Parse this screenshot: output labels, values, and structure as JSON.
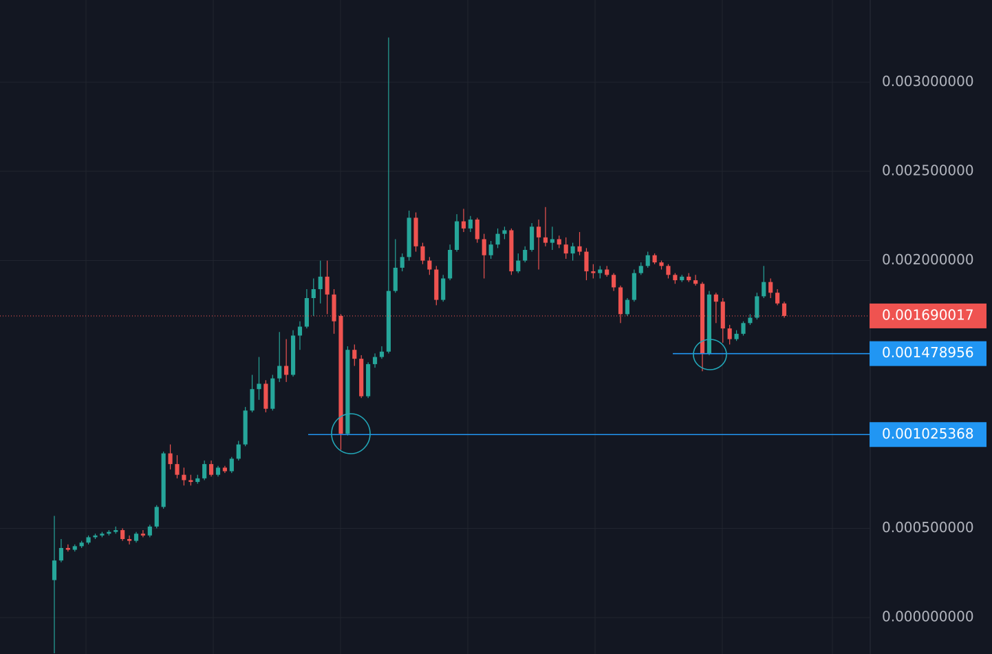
{
  "chart_data": {
    "type": "candlestick",
    "up_color": "#26a69a",
    "down_color": "#ef5350",
    "grid": true,
    "ylim": [
      -0.000204,
      0.00346
    ],
    "yticks": [
      {
        "value": 0.003,
        "label": "0.003000000"
      },
      {
        "value": 0.0025,
        "label": "0.002500000"
      },
      {
        "value": 0.002,
        "label": "0.002000000"
      },
      {
        "value": 0.0005,
        "label": "0.000500000"
      },
      {
        "value": 0,
        "label": "0.000000000"
      }
    ],
    "last_price": {
      "value": 0.001690017,
      "color": "#ef5350"
    },
    "horizontal_lines": [
      {
        "value": 0.001478956,
        "color": "#2196f3"
      },
      {
        "value": 0.001025368,
        "color": "#2196f3"
      }
    ],
    "candles": [
      [
        0.00021,
        0.00057,
        -0.0002,
        0.00032
      ],
      [
        0.00032,
        0.00044,
        0.00031,
        0.00039
      ],
      [
        0.00039,
        0.00041,
        0.00037,
        0.00038
      ],
      [
        0.00038,
        0.00041,
        0.00037,
        0.0004
      ],
      [
        0.0004,
        0.00043,
        0.00039,
        0.00042
      ],
      [
        0.00042,
        0.00046,
        0.00041,
        0.00045
      ],
      [
        0.00045,
        0.00047,
        0.00044,
        0.00046
      ],
      [
        0.00046,
        0.00048,
        0.00045,
        0.00047
      ],
      [
        0.00047,
        0.00049,
        0.00046,
        0.00048
      ],
      [
        0.00048,
        0.00051,
        0.00047,
        0.00049
      ],
      [
        0.00049,
        0.0005,
        0.00043,
        0.00044
      ],
      [
        0.00044,
        0.00046,
        0.00041,
        0.00043
      ],
      [
        0.00043,
        0.00048,
        0.00042,
        0.00047
      ],
      [
        0.00047,
        0.00049,
        0.00045,
        0.00046
      ],
      [
        0.00046,
        0.00052,
        0.00045,
        0.00051
      ],
      [
        0.00051,
        0.00063,
        0.0005,
        0.00062
      ],
      [
        0.00062,
        0.00093,
        0.00061,
        0.00092
      ],
      [
        0.00092,
        0.00097,
        0.00083,
        0.00086
      ],
      [
        0.00086,
        0.00091,
        0.00078,
        0.0008
      ],
      [
        0.0008,
        0.00084,
        0.00074,
        0.00077
      ],
      [
        0.00077,
        0.0008,
        0.00074,
        0.00076
      ],
      [
        0.00076,
        0.0008,
        0.00075,
        0.00078
      ],
      [
        0.00078,
        0.00088,
        0.00077,
        0.00086
      ],
      [
        0.00086,
        0.00088,
        0.00079,
        0.0008
      ],
      [
        0.0008,
        0.00085,
        0.00079,
        0.00084
      ],
      [
        0.00084,
        0.00085,
        0.00081,
        0.00082
      ],
      [
        0.00082,
        0.0009,
        0.00081,
        0.00089
      ],
      [
        0.00089,
        0.00099,
        0.00088,
        0.00097
      ],
      [
        0.00097,
        0.00118,
        0.00096,
        0.00116
      ],
      [
        0.00116,
        0.00136,
        0.00115,
        0.00128
      ],
      [
        0.00128,
        0.00146,
        0.00122,
        0.00131
      ],
      [
        0.00131,
        0.00133,
        0.00115,
        0.00117
      ],
      [
        0.00117,
        0.00136,
        0.00116,
        0.00134
      ],
      [
        0.00134,
        0.0016,
        0.00132,
        0.00141
      ],
      [
        0.00141,
        0.00156,
        0.00132,
        0.00136
      ],
      [
        0.00136,
        0.00161,
        0.00135,
        0.00158
      ],
      [
        0.00158,
        0.00166,
        0.0015,
        0.00163
      ],
      [
        0.00163,
        0.00184,
        0.00162,
        0.00179
      ],
      [
        0.00179,
        0.0019,
        0.00169,
        0.00184
      ],
      [
        0.00184,
        0.002,
        0.00176,
        0.00191
      ],
      [
        0.00191,
        0.002,
        0.0017,
        0.00181
      ],
      [
        0.00181,
        0.00184,
        0.00159,
        0.00166
      ],
      [
        0.00169,
        0.0017,
        0.00094,
        0.00103
      ],
      [
        0.00103,
        0.00152,
        0.00102,
        0.0015
      ],
      [
        0.0015,
        0.00153,
        0.00141,
        0.00145
      ],
      [
        0.00145,
        0.00147,
        0.00123,
        0.00124
      ],
      [
        0.00124,
        0.00143,
        0.00123,
        0.00142
      ],
      [
        0.00142,
        0.00148,
        0.0014,
        0.00146
      ],
      [
        0.00146,
        0.00152,
        0.00145,
        0.00149
      ],
      [
        0.00149,
        0.00325,
        0.00148,
        0.00183
      ],
      [
        0.00183,
        0.00212,
        0.00182,
        0.00196
      ],
      [
        0.00196,
        0.00204,
        0.00194,
        0.00202
      ],
      [
        0.00202,
        0.00228,
        0.002,
        0.00224
      ],
      [
        0.00224,
        0.00227,
        0.00205,
        0.00208
      ],
      [
        0.00208,
        0.0021,
        0.00198,
        0.002
      ],
      [
        0.002,
        0.00202,
        0.00192,
        0.00195
      ],
      [
        0.00195,
        0.00197,
        0.00175,
        0.00178
      ],
      [
        0.00178,
        0.00192,
        0.00177,
        0.0019
      ],
      [
        0.0019,
        0.00209,
        0.00189,
        0.00206
      ],
      [
        0.00206,
        0.00226,
        0.00205,
        0.00222
      ],
      [
        0.00222,
        0.00229,
        0.00216,
        0.00218
      ],
      [
        0.00218,
        0.00225,
        0.00216,
        0.00223
      ],
      [
        0.00223,
        0.00224,
        0.0021,
        0.00212
      ],
      [
        0.00212,
        0.00215,
        0.0019,
        0.00203
      ],
      [
        0.00203,
        0.00211,
        0.00201,
        0.00209
      ],
      [
        0.00209,
        0.00218,
        0.00207,
        0.00215
      ],
      [
        0.00215,
        0.00219,
        0.00212,
        0.00217
      ],
      [
        0.00217,
        0.00218,
        0.00192,
        0.00194
      ],
      [
        0.00194,
        0.00204,
        0.00193,
        0.002
      ],
      [
        0.002,
        0.00208,
        0.00199,
        0.00206
      ],
      [
        0.00206,
        0.00221,
        0.00205,
        0.00219
      ],
      [
        0.00219,
        0.00223,
        0.00195,
        0.00213
      ],
      [
        0.00213,
        0.0023,
        0.00208,
        0.0021
      ],
      [
        0.0021,
        0.00219,
        0.00206,
        0.00212
      ],
      [
        0.00212,
        0.00214,
        0.00207,
        0.00209
      ],
      [
        0.00209,
        0.00213,
        0.00201,
        0.00204
      ],
      [
        0.00204,
        0.0021,
        0.002,
        0.00208
      ],
      [
        0.00208,
        0.00216,
        0.00203,
        0.00205
      ],
      [
        0.00205,
        0.00207,
        0.00189,
        0.00194
      ],
      [
        0.00194,
        0.00198,
        0.0019,
        0.00193
      ],
      [
        0.00193,
        0.00197,
        0.0019,
        0.00195
      ],
      [
        0.00195,
        0.00197,
        0.00191,
        0.00192
      ],
      [
        0.00192,
        0.00193,
        0.00183,
        0.00185
      ],
      [
        0.00185,
        0.00186,
        0.00165,
        0.0017
      ],
      [
        0.0017,
        0.00179,
        0.00169,
        0.00178
      ],
      [
        0.00178,
        0.00195,
        0.00177,
        0.00193
      ],
      [
        0.00193,
        0.00199,
        0.00192,
        0.00197
      ],
      [
        0.00197,
        0.00205,
        0.00196,
        0.00203
      ],
      [
        0.00203,
        0.00204,
        0.00198,
        0.00199
      ],
      [
        0.00199,
        0.002,
        0.00195,
        0.00197
      ],
      [
        0.00197,
        0.00198,
        0.0019,
        0.00192
      ],
      [
        0.00192,
        0.00193,
        0.00187,
        0.00189
      ],
      [
        0.00189,
        0.00192,
        0.00188,
        0.00191
      ],
      [
        0.00191,
        0.00193,
        0.00188,
        0.00189
      ],
      [
        0.00189,
        0.00192,
        0.00186,
        0.00187
      ],
      [
        0.00187,
        0.00188,
        0.00138,
        0.00148
      ],
      [
        0.00148,
        0.00183,
        0.00147,
        0.00181
      ],
      [
        0.00181,
        0.00182,
        0.00165,
        0.00177
      ],
      [
        0.00177,
        0.00179,
        0.00154,
        0.00162
      ],
      [
        0.00162,
        0.00164,
        0.00153,
        0.00156
      ],
      [
        0.00156,
        0.00161,
        0.00155,
        0.00159
      ],
      [
        0.00159,
        0.00166,
        0.00158,
        0.00165
      ],
      [
        0.00165,
        0.0017,
        0.00164,
        0.00168
      ],
      [
        0.00168,
        0.00182,
        0.00167,
        0.0018
      ],
      [
        0.0018,
        0.00197,
        0.00179,
        0.00188
      ],
      [
        0.00188,
        0.0019,
        0.00179,
        0.00182
      ],
      [
        0.00182,
        0.00184,
        0.00175,
        0.00176
      ],
      [
        0.00176,
        0.00177,
        0.00168,
        0.00169
      ]
    ]
  }
}
